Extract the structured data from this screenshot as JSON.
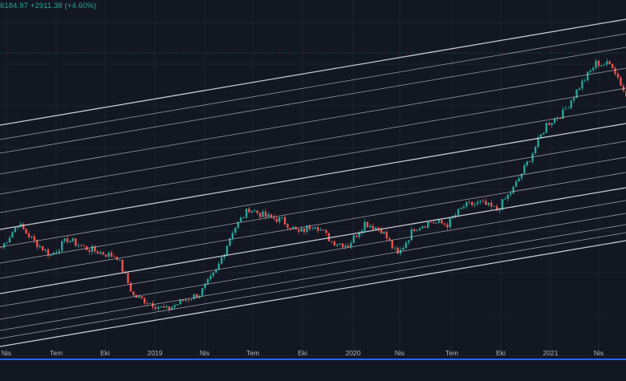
{
  "header": {
    "price_fragment": "6184.97",
    "change": "+2911.38",
    "change_pct": "(+4.60%)"
  },
  "colors": {
    "background": "#131722",
    "grid": "#1e222d",
    "channel_lines": "#d1d4dc",
    "up_candle": "#26a69a",
    "down_candle": "#ef5350",
    "time_axis_accent": "#2962ff",
    "dashed_level": "#26a69a"
  },
  "chart_data": {
    "type": "candlestick",
    "title": "",
    "xlabel": "",
    "ylabel": "",
    "x_tick_labels": [
      "Nis",
      "Tem",
      "Eki",
      "2019",
      "Nis",
      "Tem",
      "Eki",
      "2020",
      "Nis",
      "Tem",
      "Eki",
      "2021",
      "Nis"
    ],
    "y_scale": "log",
    "y_axis_visible": false,
    "grid": true,
    "legend": "none",
    "series": [
      {
        "name": "",
        "x": [
          "2018-03",
          "2018-04",
          "2018-05",
          "2018-06",
          "2018-07",
          "2018-08",
          "2018-09",
          "2018-10",
          "2018-11",
          "2018-12",
          "2019-01",
          "2019-02",
          "2019-03",
          "2019-04",
          "2019-05",
          "2019-06",
          "2019-07",
          "2019-08",
          "2019-09",
          "2019-10",
          "2019-11",
          "2019-12",
          "2020-01",
          "2020-02",
          "2020-03",
          "2020-04",
          "2020-05",
          "2020-06",
          "2020-07",
          "2020-08",
          "2020-09",
          "2020-10",
          "2020-11",
          "2020-12",
          "2021-01",
          "2021-02",
          "2021-03",
          "2021-04",
          "2021-05"
        ],
        "close": [
          7000,
          9200,
          7500,
          6400,
          7700,
          7000,
          6600,
          6300,
          4000,
          3700,
          3400,
          3800,
          4100,
          5300,
          8500,
          11000,
          10000,
          9600,
          8300,
          9200,
          7500,
          7200,
          9300,
          8600,
          6400,
          8800,
          9400,
          9150,
          11300,
          11700,
          10800,
          13800,
          19700,
          29000,
          33100,
          45000,
          58800,
          57700,
          37300
        ]
      }
    ],
    "channel_lines_count": 11
  }
}
